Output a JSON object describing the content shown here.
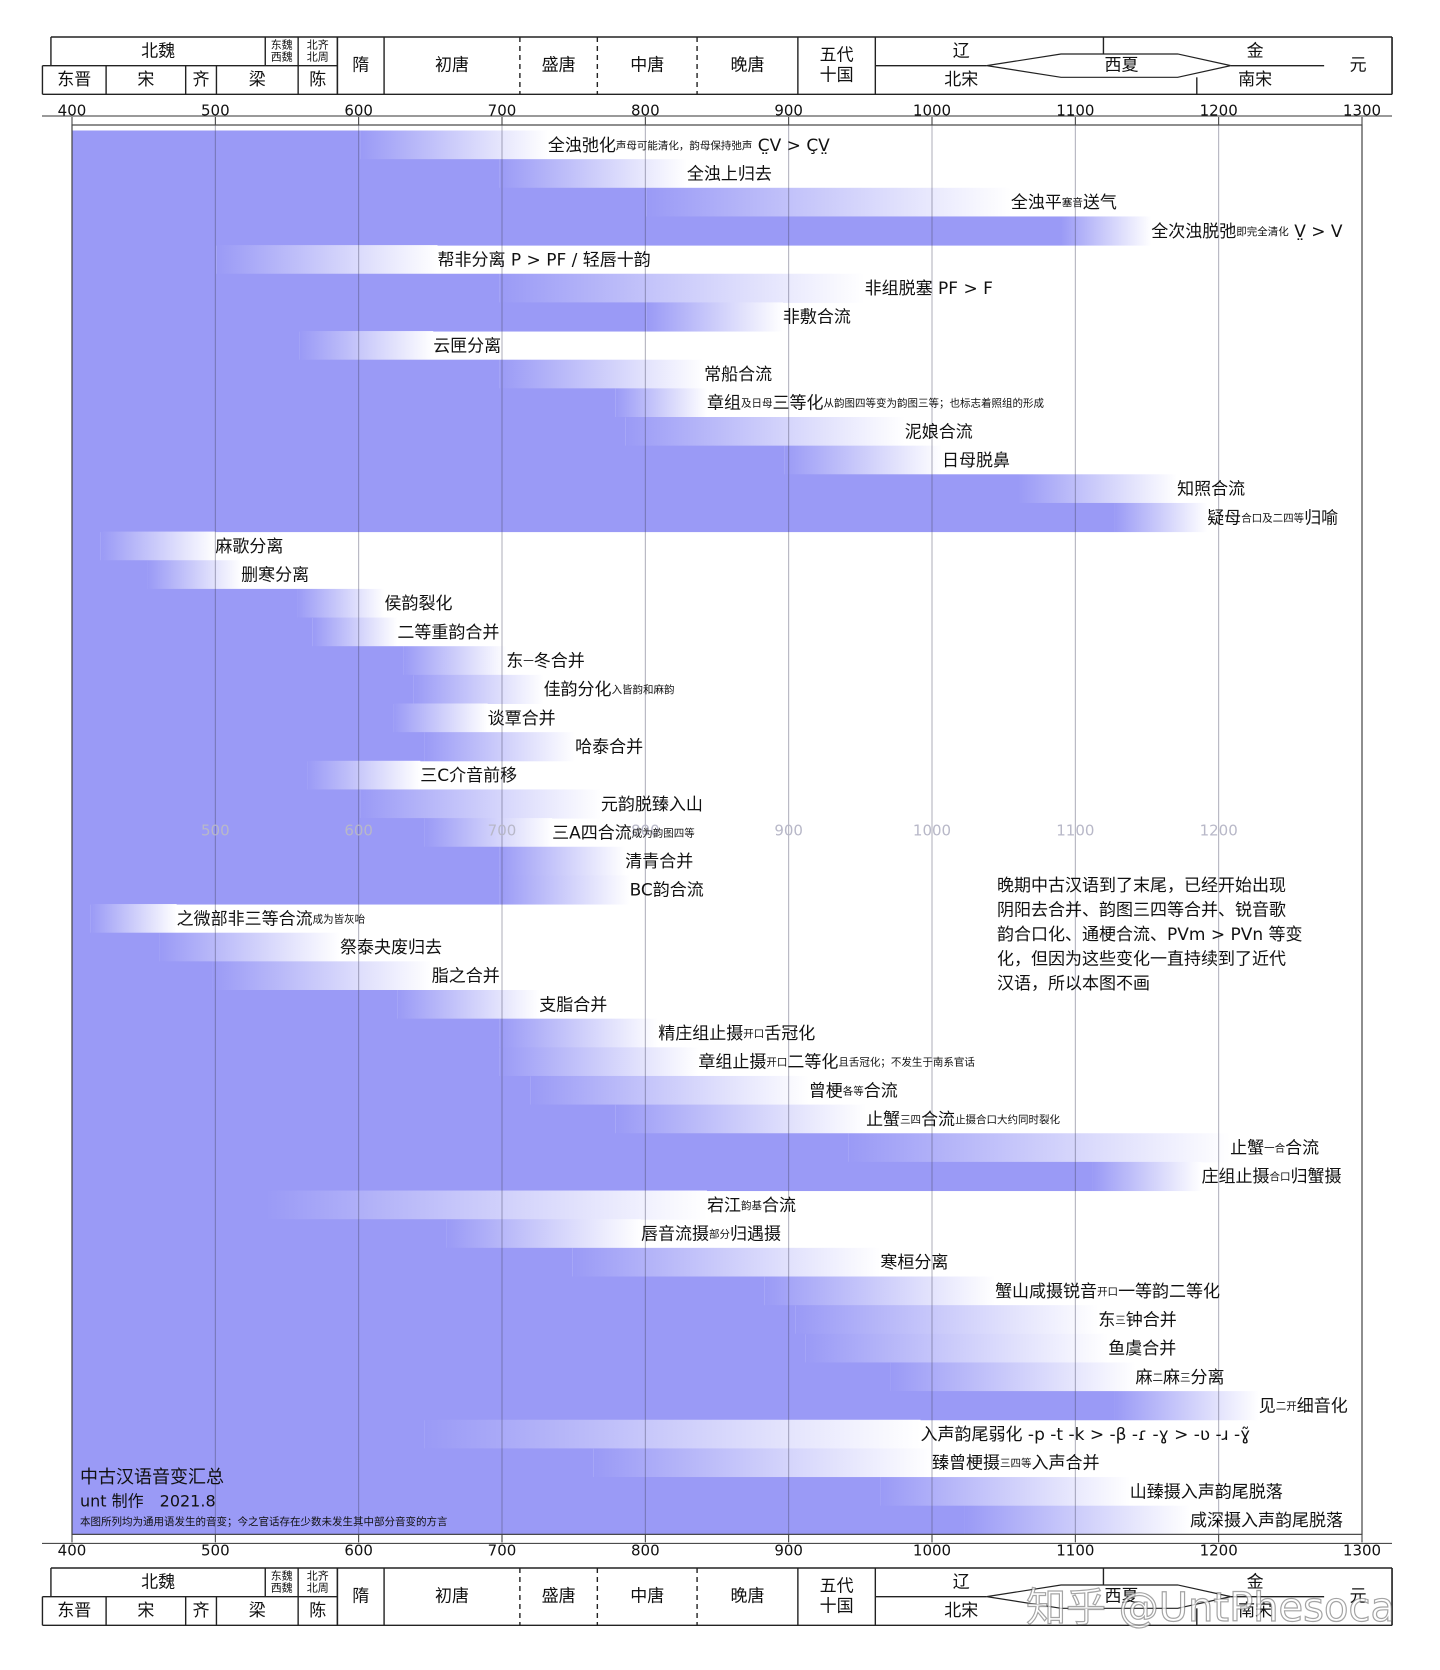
{
  "chart_data": {
    "type": "timeline",
    "color": "#9a9af6",
    "xlim": [
      400,
      1300
    ],
    "xticks": [
      400,
      500,
      600,
      700,
      800,
      900,
      1000,
      1100,
      1200,
      1300
    ],
    "grid": true,
    "periods": [
      {
        "lines": [
          "北魏"
        ]
      },
      {
        "lines": [
          "东魏",
          "西魏"
        ]
      },
      {
        "lines": [
          "北齐",
          "北周"
        ]
      },
      {
        "lines": [
          "东晋"
        ]
      },
      {
        "lines": [
          "宋"
        ]
      },
      {
        "lines": [
          "齐"
        ]
      },
      {
        "lines": [
          "梁"
        ]
      },
      {
        "lines": [
          "陈"
        ]
      },
      {
        "lines": [
          "隋"
        ]
      },
      {
        "lines": [
          "初唐"
        ]
      },
      {
        "lines": [
          "盛唐"
        ]
      },
      {
        "lines": [
          "中唐"
        ]
      },
      {
        "lines": [
          "晚唐"
        ]
      },
      {
        "lines": [
          "五代",
          "十国"
        ]
      },
      {
        "lines": [
          "辽"
        ]
      },
      {
        "lines": [
          "西夏"
        ]
      },
      {
        "lines": [
          "金"
        ]
      },
      {
        "lines": [
          "北宋"
        ]
      },
      {
        "lines": [
          "南宋"
        ]
      },
      {
        "lines": [
          "元"
        ]
      }
    ],
    "rows": [
      {
        "label": [
          {
            "text": "全浊弛化"
          },
          {
            "text": "声母可能清化，韵母保持弛声",
            "small": true
          },
          {
            "text": " C̤V > ÇV̤"
          }
        ],
        "start": 601,
        "end": 732
      },
      {
        "label": [
          {
            "text": "全浊上归去"
          }
        ],
        "start": 698,
        "end": 829
      },
      {
        "label": [
          {
            "text": "全浊平"
          },
          {
            "text": "塞音",
            "small": true
          },
          {
            "text": "送气"
          }
        ],
        "start": 801,
        "end": 1055
      },
      {
        "label": [
          {
            "text": "全次浊脱弛"
          },
          {
            "text": "即完全清化",
            "small": true
          },
          {
            "text": " V̤ > V"
          }
        ],
        "start": 1090,
        "end": 1153
      },
      {
        "label": [
          {
            "text": "帮非分离 P > PF / 轻唇十韵"
          }
        ],
        "start": 501,
        "end": 655
      },
      {
        "label": [
          {
            "text": "非组脱塞 PF > F"
          }
        ],
        "start": 698,
        "end": 953
      },
      {
        "label": [
          {
            "text": "非敷合流"
          }
        ],
        "start": 801,
        "end": 896
      },
      {
        "label": [
          {
            "text": "云匣分离"
          }
        ],
        "start": 559,
        "end": 652
      },
      {
        "label": [
          {
            "text": "常船合流"
          }
        ],
        "start": 698,
        "end": 841
      },
      {
        "label": [
          {
            "text": "章组"
          },
          {
            "text": "及日母",
            "small": true
          },
          {
            "text": "三等化"
          },
          {
            "text": "从韵图四等变为韵图三等；也标志着照组的形成",
            "small": true
          }
        ],
        "start": 779,
        "end": 843
      },
      {
        "label": [
          {
            "text": "泥娘合流"
          }
        ],
        "start": 786,
        "end": 981
      },
      {
        "label": [
          {
            "text": "日母脱鼻"
          }
        ],
        "start": 897,
        "end": 1007
      },
      {
        "label": [
          {
            "text": "知照合流"
          }
        ],
        "start": 1060,
        "end": 1171
      },
      {
        "label": [
          {
            "text": "疑母"
          },
          {
            "text": "合口及二四等",
            "small": true
          },
          {
            "text": "归喻"
          }
        ],
        "start": 1127,
        "end": 1192
      },
      {
        "label": [
          {
            "text": "麻歌分离"
          }
        ],
        "start": 420,
        "end": 500
      },
      {
        "label": [
          {
            "text": "删寒分离"
          }
        ],
        "start": 453,
        "end": 518
      },
      {
        "label": [
          {
            "text": "侯韵裂化"
          }
        ],
        "start": 557,
        "end": 618
      },
      {
        "label": [
          {
            "text": "二等重韵合并"
          }
        ],
        "start": 568,
        "end": 627
      },
      {
        "label": [
          {
            "text": "东"
          },
          {
            "text": "一",
            "small": true
          },
          {
            "text": "冬合并"
          }
        ],
        "start": 631,
        "end": 703
      },
      {
        "label": [
          {
            "text": "佳韵分化"
          },
          {
            "text": "入皆韵和麻韵",
            "small": true
          }
        ],
        "start": 638,
        "end": 729
      },
      {
        "label": [
          {
            "text": "谈覃合并"
          }
        ],
        "start": 624,
        "end": 690
      },
      {
        "label": [
          {
            "text": "哈泰合并"
          }
        ],
        "start": 646,
        "end": 751
      },
      {
        "label": [
          {
            "text": "三C介音前移"
          }
        ],
        "start": 564,
        "end": 643
      },
      {
        "label": [
          {
            "text": "元韵脱臻入山"
          }
        ],
        "start": 601,
        "end": 769
      },
      {
        "label": [
          {
            "text": "三A四合流"
          },
          {
            "text": "成为韵图四等",
            "small": true
          }
        ],
        "start": 646,
        "end": 735
      },
      {
        "label": [
          {
            "text": "清青合并"
          }
        ],
        "start": 698,
        "end": 786
      },
      {
        "label": [
          {
            "text": "BC韵合流"
          }
        ],
        "start": 698,
        "end": 789
      },
      {
        "label": [
          {
            "text": "之微部非三等合流"
          },
          {
            "text": "成为皆灰咍",
            "small": true
          }
        ],
        "start": 413,
        "end": 473
      },
      {
        "label": [
          {
            "text": "祭泰夬废归去"
          }
        ],
        "start": 461,
        "end": 587
      },
      {
        "label": [
          {
            "text": "脂之合并"
          }
        ],
        "start": 498,
        "end": 651
      },
      {
        "label": [
          {
            "text": "支脂合并"
          }
        ],
        "start": 627,
        "end": 726
      },
      {
        "label": [
          {
            "text": "精庄组止摄"
          },
          {
            "text": "开口",
            "small": true
          },
          {
            "text": "舌冠化"
          }
        ],
        "start": 698,
        "end": 809
      },
      {
        "label": [
          {
            "text": "章组止摄"
          },
          {
            "text": "开口",
            "small": true
          },
          {
            "text": "二等化"
          },
          {
            "text": "且舌冠化；不发生于南系官话",
            "small": true
          }
        ],
        "start": 698,
        "end": 837
      },
      {
        "label": [
          {
            "text": "曾梗"
          },
          {
            "text": "各等",
            "small": true
          },
          {
            "text": "合流"
          }
        ],
        "start": 720,
        "end": 914
      },
      {
        "label": [
          {
            "text": "止蟹"
          },
          {
            "text": "三四",
            "small": true
          },
          {
            "text": "合流"
          },
          {
            "text": "止摄合口大约同时裂化",
            "small": true
          }
        ],
        "start": 779,
        "end": 954
      },
      {
        "label": [
          {
            "text": "止蟹"
          },
          {
            "text": "一合",
            "small": true
          },
          {
            "text": "合流"
          }
        ],
        "start": 942,
        "end": 1208
      },
      {
        "label": [
          {
            "text": "庄组止摄"
          },
          {
            "text": "合口",
            "small": true
          },
          {
            "text": "归蟹摄"
          }
        ],
        "start": 1112,
        "end": 1188
      },
      {
        "label": [
          {
            "text": "宕江"
          },
          {
            "text": "韵基",
            "small": true
          },
          {
            "text": "合流"
          }
        ],
        "start": 535,
        "end": 843
      },
      {
        "label": [
          {
            "text": "唇音流摄"
          },
          {
            "text": "部分",
            "small": true
          },
          {
            "text": "归遇摄"
          }
        ],
        "start": 661,
        "end": 797
      },
      {
        "label": [
          {
            "text": "寒桓分离"
          }
        ],
        "start": 749,
        "end": 964
      },
      {
        "label": [
          {
            "text": "蟹山咸摄锐音"
          },
          {
            "text": "开口",
            "small": true
          },
          {
            "text": "一等韵二等化"
          }
        ],
        "start": 883,
        "end": 1044
      },
      {
        "label": [
          {
            "text": "东"
          },
          {
            "text": "三",
            "small": true
          },
          {
            "text": "钟合并"
          }
        ],
        "start": 905,
        "end": 1116
      },
      {
        "label": [
          {
            "text": "鱼虞合并"
          }
        ],
        "start": 912,
        "end": 1123
      },
      {
        "label": [
          {
            "text": "麻"
          },
          {
            "text": "二",
            "small": true
          },
          {
            "text": "麻"
          },
          {
            "text": "三",
            "small": true
          },
          {
            "text": "分离"
          }
        ],
        "start": 971,
        "end": 1142
      },
      {
        "label": [
          {
            "text": "见"
          },
          {
            "text": "二开",
            "small": true
          },
          {
            "text": "细音化"
          }
        ],
        "start": 1127,
        "end": 1228
      },
      {
        "label": [
          {
            "text": "入声韵尾弱化 -p -t -k > -β -ɾ -ɣ > -ʋ -ɹ -ɣ̃"
          }
        ],
        "start": 646,
        "end": 992
      },
      {
        "label": [
          {
            "text": "臻曾梗摄"
          },
          {
            "text": "三四等",
            "small": true
          },
          {
            "text": "入声合并"
          }
        ],
        "start": 764,
        "end": 1000
      },
      {
        "label": [
          {
            "text": "山臻摄入声韵尾脱落"
          }
        ],
        "start": 964,
        "end": 1138
      },
      {
        "label": [
          {
            "text": "咸深摄入声韵尾脱落"
          }
        ],
        "start": 1023,
        "end": 1180
      }
    ],
    "annotation": [
      "晚期中古汉语到了末尾，已经开始出现",
      "阴阳去合并、韵图三四等合并、锐音歌",
      "韵合口化、通梗合流、PVm > PVn 等变",
      "化，但因为这些变化一直持续到了近代",
      "汉语，所以本图不画"
    ],
    "footer": {
      "title": "中古汉语音变汇总",
      "author": "unt 制作　2021.8",
      "note": "本图所列均为通用语发生的音变；今之官话存在少数未发生其中部分音变的方言"
    },
    "watermark": "知乎 @UntPhesoca"
  }
}
